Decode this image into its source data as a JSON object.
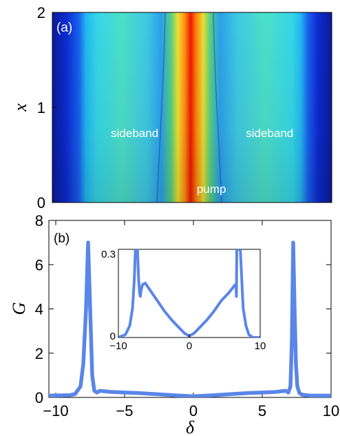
{
  "chart_data": [
    {
      "type": "heatmap",
      "panel_label": "(a)",
      "ylabel": "x",
      "ylim": [
        0,
        2
      ],
      "yticks": [
        "0",
        "1",
        "2"
      ],
      "xlim": [
        -10.5,
        10
      ],
      "colormap": "jet",
      "annotations": [
        {
          "text": "sideband",
          "x": -6.2,
          "y": 0.69
        },
        {
          "text": "sideband",
          "x": 3.7,
          "y": 0.69
        },
        {
          "text": "pump",
          "x": 0.1,
          "y": 0.1
        }
      ]
    },
    {
      "type": "line",
      "panel_label": "(b)",
      "xlabel": "δ",
      "ylabel": "G",
      "xlim": [
        -10.5,
        10
      ],
      "ylim": [
        0,
        8
      ],
      "xticks": [
        "−10",
        "−5",
        "0",
        "5",
        "10"
      ],
      "yticks": [
        "0",
        "2",
        "4",
        "6",
        "8"
      ],
      "color": "#5a86e8",
      "series": [
        {
          "x": [
            -10.5,
            -9,
            -8.6,
            -8.2,
            -8.0,
            -7.8,
            -7.65,
            -7.5,
            -7.35,
            -7.2,
            -7.0,
            -6.8,
            -6.5,
            -6.0,
            -5,
            -4,
            -3,
            -2,
            -1,
            0,
            1,
            2,
            3,
            4,
            5,
            6,
            6.4,
            6.7,
            6.9,
            7.05,
            7.15,
            7.25,
            7.35,
            7.45,
            7.55,
            7.7,
            7.9,
            8.2,
            8.6,
            9,
            10
          ],
          "y": [
            0.08,
            0.1,
            0.15,
            0.5,
            1.5,
            4.0,
            7.0,
            4.0,
            1.0,
            0.3,
            0.22,
            0.3,
            0.28,
            0.25,
            0.22,
            0.2,
            0.16,
            0.12,
            0.08,
            0.05,
            0.08,
            0.12,
            0.16,
            0.2,
            0.22,
            0.25,
            0.28,
            0.3,
            0.22,
            0.5,
            2.5,
            7.0,
            4.0,
            1.5,
            0.5,
            0.2,
            0.12,
            0.1,
            0.08,
            0.08,
            0.08
          ]
        }
      ],
      "inset": {
        "xlim": [
          -10,
          10
        ],
        "ylim": [
          0,
          0.3
        ],
        "xticks": [
          "−10",
          "0",
          "10"
        ],
        "yticks": [
          "0",
          "0.3"
        ],
        "series": [
          {
            "x": [
              -10,
              -9,
              -8.4,
              -8.0,
              -7.75,
              -7.6,
              -7.5,
              -7.3,
              -7.15,
              -7.0,
              -6.9,
              -6.8,
              -6.6,
              -6.2,
              -5.5,
              -4.5,
              -3.5,
              -2.5,
              -1.5,
              -0.7,
              0,
              0.7,
              1.5,
              2.5,
              3.5,
              4.5,
              5.5,
              6.0,
              6.3,
              6.5,
              6.6,
              6.65,
              6.7,
              6.8,
              7.0,
              7.2,
              7.4,
              7.6,
              8.0,
              8.4,
              9,
              10
            ],
            "y": [
              0.0,
              0.01,
              0.04,
              0.1,
              0.2,
              0.3,
              0.3,
              0.3,
              0.2,
              0.15,
              0.14,
              0.16,
              0.18,
              0.185,
              0.16,
              0.125,
              0.09,
              0.06,
              0.035,
              0.015,
              0.005,
              0.015,
              0.035,
              0.06,
              0.09,
              0.125,
              0.15,
              0.165,
              0.175,
              0.18,
              0.17,
              0.14,
              0.3,
              0.3,
              0.3,
              0.3,
              0.2,
              0.1,
              0.04,
              0.01,
              0.0,
              0.0
            ]
          }
        ]
      }
    }
  ]
}
